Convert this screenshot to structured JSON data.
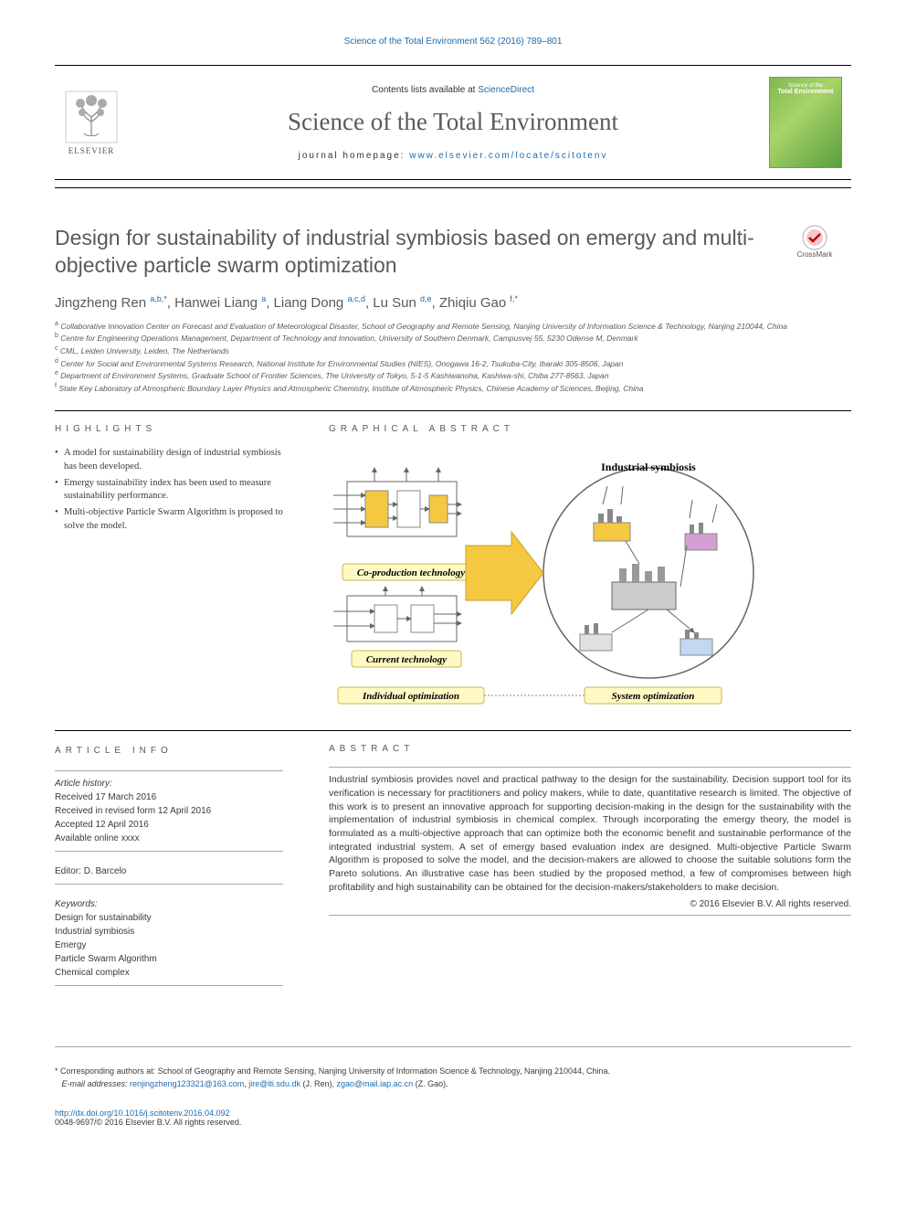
{
  "running_head": "Science of the Total Environment 562 (2016) 789–801",
  "masthead": {
    "contents_prefix": "Contents lists available at ",
    "contents_link": "ScienceDirect",
    "journal_title": "Science of the Total Environment",
    "homepage_prefix": "journal homepage: ",
    "homepage_url": "www.elsevier.com/locate/scitotenv",
    "elsevier_text": "ELSEVIER",
    "cover_line1": "Science of the",
    "cover_line2": "Total Environment"
  },
  "crossmark_label": "CrossMark",
  "article_title": "Design for sustainability of industrial symbiosis based on emergy and multi-objective particle swarm optimization",
  "authors_html": "Jingzheng Ren <sup>a,b,*</sup>, Hanwei Liang <sup>a</sup>, Liang Dong <sup>a,c,d</sup>, Lu Sun <sup>d,e</sup>, Zhiqiu Gao <sup>f,*</sup>",
  "affiliations": [
    {
      "key": "a",
      "text": "Collaborative Innovation Center on Forecast and Evaluation of Meteorological Disaster, School of Geography and Remote Sensing, Nanjing University of Information Science & Technology, Nanjing 210044, China"
    },
    {
      "key": "b",
      "text": "Centre for Engineering Operations Management, Department of Technology and Innovation, University of Southern Denmark, Campusvej 55, 5230 Odense M, Denmark"
    },
    {
      "key": "c",
      "text": "CML, Leiden University, Leiden, The Netherlands"
    },
    {
      "key": "d",
      "text": "Center for Social and Environmental Systems Research, National Institute for Environmental Studies (NIES), Onogawa 16-2, Tsukuba-City, Ibaraki 305-8506, Japan"
    },
    {
      "key": "e",
      "text": "Department of Environment Systems, Graduate School of Frontier Sciences, The University of Tokyo, 5-1-5 Kashiwanoha, Kashiwa-shi, Chiba 277-8563, Japan"
    },
    {
      "key": "f",
      "text": "State Key Laboratory of Atmospheric Boundary Layer Physics and Atmospheric Chemistry, Institute of Atmospheric Physics, Chinese Academy of Sciences, Beijing, China"
    }
  ],
  "highlights": {
    "head": "HIGHLIGHTS",
    "items": [
      "A model for sustainability design of industrial symbiosis has been developed.",
      "Emergy sustainability index has been used to measure sustainability performance.",
      "Multi-objective Particle Swarm Algorithm is proposed to solve the model."
    ]
  },
  "graphical_abstract": {
    "head": "GRAPHICAL ABSTRACT",
    "labels": {
      "is": "Industrial symbiosis",
      "cp": "Co-production technology",
      "ct": "Current technology",
      "io": "Individual optimization",
      "so": "System optimization"
    },
    "colors": {
      "box_fill": "#fff9c4",
      "box_stroke": "#c9b94d",
      "arrow_fill": "#f5c842",
      "circle_stroke": "#666666",
      "bg": "#ffffff"
    }
  },
  "article_info": {
    "head": "ARTICLE INFO",
    "history_head": "Article history:",
    "history": [
      "Received 17 March 2016",
      "Received in revised form 12 April 2016",
      "Accepted 12 April 2016",
      "Available online xxxx"
    ],
    "editor_label": "Editor: ",
    "editor": "D. Barcelo",
    "keywords_head": "Keywords:",
    "keywords": [
      "Design for sustainability",
      "Industrial symbiosis",
      "Emergy",
      "Particle Swarm Algorithm",
      "Chemical complex"
    ]
  },
  "abstract": {
    "head": "ABSTRACT",
    "text": "Industrial symbiosis provides novel and practical pathway to the design for the sustainability. Decision support tool for its verification is necessary for practitioners and policy makers, while to date, quantitative research is limited. The objective of this work is to present an innovative approach for supporting decision-making in the design for the sustainability with the implementation of industrial symbiosis in chemical complex. Through incorporating the emergy theory, the model is formulated as a multi-objective approach that can optimize both the economic benefit and sustainable performance of the integrated industrial system. A set of emergy based evaluation index are designed. Multi-objective Particle Swarm Algorithm is proposed to solve the model, and the decision-makers are allowed to choose the suitable solutions form the Pareto solutions. An illustrative case has been studied by the proposed method, a few of compromises between high profitability and high sustainability can be obtained for the decision-makers/stakeholders to make decision.",
    "copyright": "© 2016 Elsevier B.V. All rights reserved."
  },
  "corresp": {
    "star": "*",
    "text": "Corresponding authors at: School of Geography and Remote Sensing, Nanjing University of Information Science & Technology, Nanjing 210044, China.",
    "email_label": "E-mail addresses: ",
    "emails": "renjingzheng123321@163.com, jire@iti.sdu.dk (J. Ren), zgao@mail.iap.ac.cn (Z. Gao)."
  },
  "footer": {
    "doi": "http://dx.doi.org/10.1016/j.scitotenv.2016.04.092",
    "issn_line": "0048-9697/© 2016 Elsevier B.V. All rights reserved."
  }
}
